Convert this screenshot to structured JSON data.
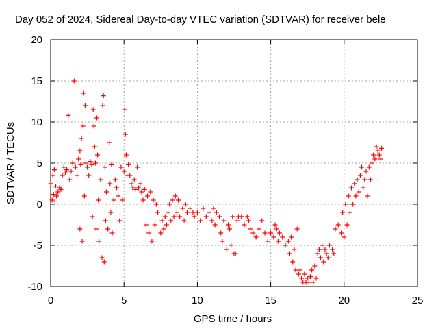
{
  "chart_data": {
    "type": "scatter",
    "title": "Day 052 of 2024, Sidereal Day-to-day VTEC variation (SDTVAR) for receiver bele",
    "xlabel": "GPS time / hours",
    "ylabel": "SDTVAR / TECUs",
    "xlim": [
      0,
      25
    ],
    "ylim": [
      -10,
      20
    ],
    "xticks": [
      0,
      5,
      10,
      15,
      20,
      25
    ],
    "yticks": [
      -10,
      -5,
      0,
      5,
      10,
      15,
      20
    ],
    "grid": true,
    "marker": "+",
    "color": "#ff0000",
    "series": [
      {
        "name": "SDTVAR",
        "points": [
          [
            0.0,
            2.5
          ],
          [
            0.1,
            0.5
          ],
          [
            0.15,
            3.5
          ],
          [
            0.2,
            1.2
          ],
          [
            0.25,
            4.2
          ],
          [
            0.3,
            0.3
          ],
          [
            0.35,
            2.2
          ],
          [
            0.4,
            1.0
          ],
          [
            0.5,
            1.5
          ],
          [
            0.6,
            2.0
          ],
          [
            0.7,
            1.8
          ],
          [
            0.8,
            3.5
          ],
          [
            0.9,
            4.5
          ],
          [
            1.0,
            3.8
          ],
          [
            1.1,
            4.2
          ],
          [
            1.2,
            10.8
          ],
          [
            1.3,
            3.0
          ],
          [
            1.4,
            4.0
          ],
          [
            1.5,
            5.0
          ],
          [
            1.6,
            15.0
          ],
          [
            1.7,
            4.5
          ],
          [
            1.8,
            3.5
          ],
          [
            1.9,
            5.5
          ],
          [
            2.0,
            6.5
          ],
          [
            2.0,
            -3.0
          ],
          [
            2.05,
            4.8
          ],
          [
            2.1,
            8.0
          ],
          [
            2.15,
            -4.5
          ],
          [
            2.2,
            9.5
          ],
          [
            2.25,
            13.5
          ],
          [
            2.3,
            1.0
          ],
          [
            2.35,
            12.0
          ],
          [
            2.4,
            5.0
          ],
          [
            2.5,
            4.5
          ],
          [
            2.6,
            3.5
          ],
          [
            2.7,
            5.2
          ],
          [
            2.8,
            4.8
          ],
          [
            2.85,
            -1.5
          ],
          [
            2.9,
            11.5
          ],
          [
            2.95,
            9.5
          ],
          [
            3.0,
            7.0
          ],
          [
            3.05,
            5.0
          ],
          [
            3.1,
            -3.0
          ],
          [
            3.15,
            10.5
          ],
          [
            3.2,
            6.0
          ],
          [
            3.25,
            0.5
          ],
          [
            3.3,
            -4.5
          ],
          [
            3.4,
            3.0
          ],
          [
            3.5,
            -6.5
          ],
          [
            3.55,
            12.0
          ],
          [
            3.6,
            13.2
          ],
          [
            3.65,
            -7.0
          ],
          [
            3.7,
            4.5
          ],
          [
            3.75,
            -2.0
          ],
          [
            3.8,
            1.5
          ],
          [
            3.9,
            -3.0
          ],
          [
            4.0,
            7.5
          ],
          [
            4.05,
            2.5
          ],
          [
            4.1,
            -1.0
          ],
          [
            4.15,
            4.8
          ],
          [
            4.2,
            -3.5
          ],
          [
            4.3,
            0.5
          ],
          [
            4.4,
            3.0
          ],
          [
            4.5,
            2.0
          ],
          [
            4.6,
            1.0
          ],
          [
            4.7,
            -2.0
          ],
          [
            4.8,
            4.5
          ],
          [
            4.9,
            0.5
          ],
          [
            5.0,
            4.0
          ],
          [
            5.05,
            11.5
          ],
          [
            5.1,
            8.5
          ],
          [
            5.15,
            6.0
          ],
          [
            5.2,
            3.5
          ],
          [
            5.3,
            4.8
          ],
          [
            5.4,
            3.5
          ],
          [
            5.5,
            2.5
          ],
          [
            5.6,
            2.0
          ],
          [
            5.7,
            3.0
          ],
          [
            5.8,
            1.8
          ],
          [
            5.9,
            4.5
          ],
          [
            6.0,
            2.0
          ],
          [
            6.1,
            2.5
          ],
          [
            6.2,
            1.5
          ],
          [
            6.3,
            0.5
          ],
          [
            6.4,
            1.8
          ],
          [
            6.5,
            -2.5
          ],
          [
            6.6,
            1.0
          ],
          [
            6.7,
            -3.5
          ],
          [
            6.8,
            1.5
          ],
          [
            6.9,
            -4.5
          ],
          [
            7.0,
            0.5
          ],
          [
            7.1,
            -2.5
          ],
          [
            7.2,
            0.0
          ],
          [
            7.3,
            -1.0
          ],
          [
            7.5,
            -3.5
          ],
          [
            7.6,
            -2.0
          ],
          [
            7.7,
            -3.0
          ],
          [
            7.8,
            -1.5
          ],
          [
            7.9,
            -2.5
          ],
          [
            8.0,
            -1.0
          ],
          [
            8.1,
            0.0
          ],
          [
            8.2,
            -2.0
          ],
          [
            8.3,
            0.5
          ],
          [
            8.4,
            -1.5
          ],
          [
            8.5,
            1.0
          ],
          [
            8.6,
            -1.0
          ],
          [
            8.7,
            0.5
          ],
          [
            8.8,
            -1.5
          ],
          [
            9.0,
            -0.5
          ],
          [
            9.1,
            -2.0
          ],
          [
            9.2,
            0.0
          ],
          [
            9.3,
            -1.0
          ],
          [
            9.5,
            -0.5
          ],
          [
            9.7,
            -1.0
          ],
          [
            9.8,
            -1.5
          ],
          [
            10.0,
            -1.0
          ],
          [
            10.2,
            -2.0
          ],
          [
            10.4,
            -0.5
          ],
          [
            10.6,
            -1.5
          ],
          [
            10.8,
            -1.0
          ],
          [
            11.0,
            -2.0
          ],
          [
            11.1,
            -0.5
          ],
          [
            11.2,
            -2.5
          ],
          [
            11.3,
            -1.0
          ],
          [
            11.5,
            -1.5
          ],
          [
            11.6,
            -3.5
          ],
          [
            11.7,
            -4.5
          ],
          [
            11.8,
            -2.0
          ],
          [
            12.0,
            -5.5
          ],
          [
            12.1,
            -2.5
          ],
          [
            12.2,
            -3.0
          ],
          [
            12.3,
            -5.0
          ],
          [
            12.4,
            -1.5
          ],
          [
            12.5,
            -6.0
          ],
          [
            12.6,
            -6.0
          ],
          [
            12.7,
            -2.0
          ],
          [
            12.8,
            -1.5
          ],
          [
            13.0,
            -1.5
          ],
          [
            13.2,
            -2.5
          ],
          [
            13.4,
            -1.5
          ],
          [
            13.5,
            -2.0
          ],
          [
            13.6,
            -3.0
          ],
          [
            13.8,
            -3.5
          ],
          [
            14.0,
            -4.0
          ],
          [
            14.2,
            -3.0
          ],
          [
            14.4,
            -2.0
          ],
          [
            14.6,
            -3.5
          ],
          [
            14.8,
            -4.5
          ],
          [
            15.0,
            -3.5
          ],
          [
            15.2,
            -4.0
          ],
          [
            15.3,
            -2.5
          ],
          [
            15.4,
            -3.0
          ],
          [
            15.5,
            -4.5
          ],
          [
            15.6,
            -3.5
          ],
          [
            15.8,
            -4.0
          ],
          [
            16.0,
            -5.0
          ],
          [
            16.2,
            -4.5
          ],
          [
            16.3,
            -6.0
          ],
          [
            16.4,
            -4.0
          ],
          [
            16.5,
            -7.0
          ],
          [
            16.6,
            -5.5
          ],
          [
            16.7,
            -8.0
          ],
          [
            16.8,
            -3.0
          ],
          [
            16.9,
            -8.5
          ],
          [
            17.0,
            -8.0
          ],
          [
            17.1,
            -9.0
          ],
          [
            17.2,
            -9.5
          ],
          [
            17.3,
            -8.5
          ],
          [
            17.4,
            -9.5
          ],
          [
            17.5,
            -9.0
          ],
          [
            17.6,
            -9.5
          ],
          [
            17.7,
            -8.8
          ],
          [
            17.8,
            -8.0
          ],
          [
            17.9,
            -9.5
          ],
          [
            18.0,
            -7.5
          ],
          [
            18.1,
            -9.0
          ],
          [
            18.2,
            -6.0
          ],
          [
            18.3,
            -5.5
          ],
          [
            18.4,
            -6.5
          ],
          [
            18.5,
            -5.0
          ],
          [
            18.6,
            -7.0
          ],
          [
            18.7,
            -5.5
          ],
          [
            18.8,
            -6.0
          ],
          [
            18.9,
            -6.5
          ],
          [
            19.0,
            -5.0
          ],
          [
            19.2,
            -5.5
          ],
          [
            19.3,
            -6.0
          ],
          [
            19.4,
            -3.0
          ],
          [
            19.6,
            -2.5
          ],
          [
            19.8,
            -3.5
          ],
          [
            19.9,
            -1.0
          ],
          [
            20.0,
            -4.0
          ],
          [
            20.1,
            0.0
          ],
          [
            20.2,
            -2.5
          ],
          [
            20.3,
            1.0
          ],
          [
            20.4,
            -1.0
          ],
          [
            20.5,
            2.0
          ],
          [
            20.6,
            0.0
          ],
          [
            20.7,
            2.5
          ],
          [
            20.8,
            1.0
          ],
          [
            20.9,
            3.0
          ],
          [
            21.0,
            1.5
          ],
          [
            21.1,
            3.5
          ],
          [
            21.2,
            4.5
          ],
          [
            21.3,
            2.0
          ],
          [
            21.4,
            3.0
          ],
          [
            21.5,
            4.0
          ],
          [
            21.6,
            1.0
          ],
          [
            21.7,
            4.5
          ],
          [
            21.8,
            3.0
          ],
          [
            21.9,
            5.0
          ],
          [
            22.0,
            6.0
          ],
          [
            22.1,
            5.5
          ],
          [
            22.2,
            7.0
          ],
          [
            22.3,
            6.5
          ],
          [
            22.4,
            6.0
          ],
          [
            22.5,
            5.5
          ],
          [
            22.55,
            6.8
          ]
        ]
      }
    ]
  }
}
